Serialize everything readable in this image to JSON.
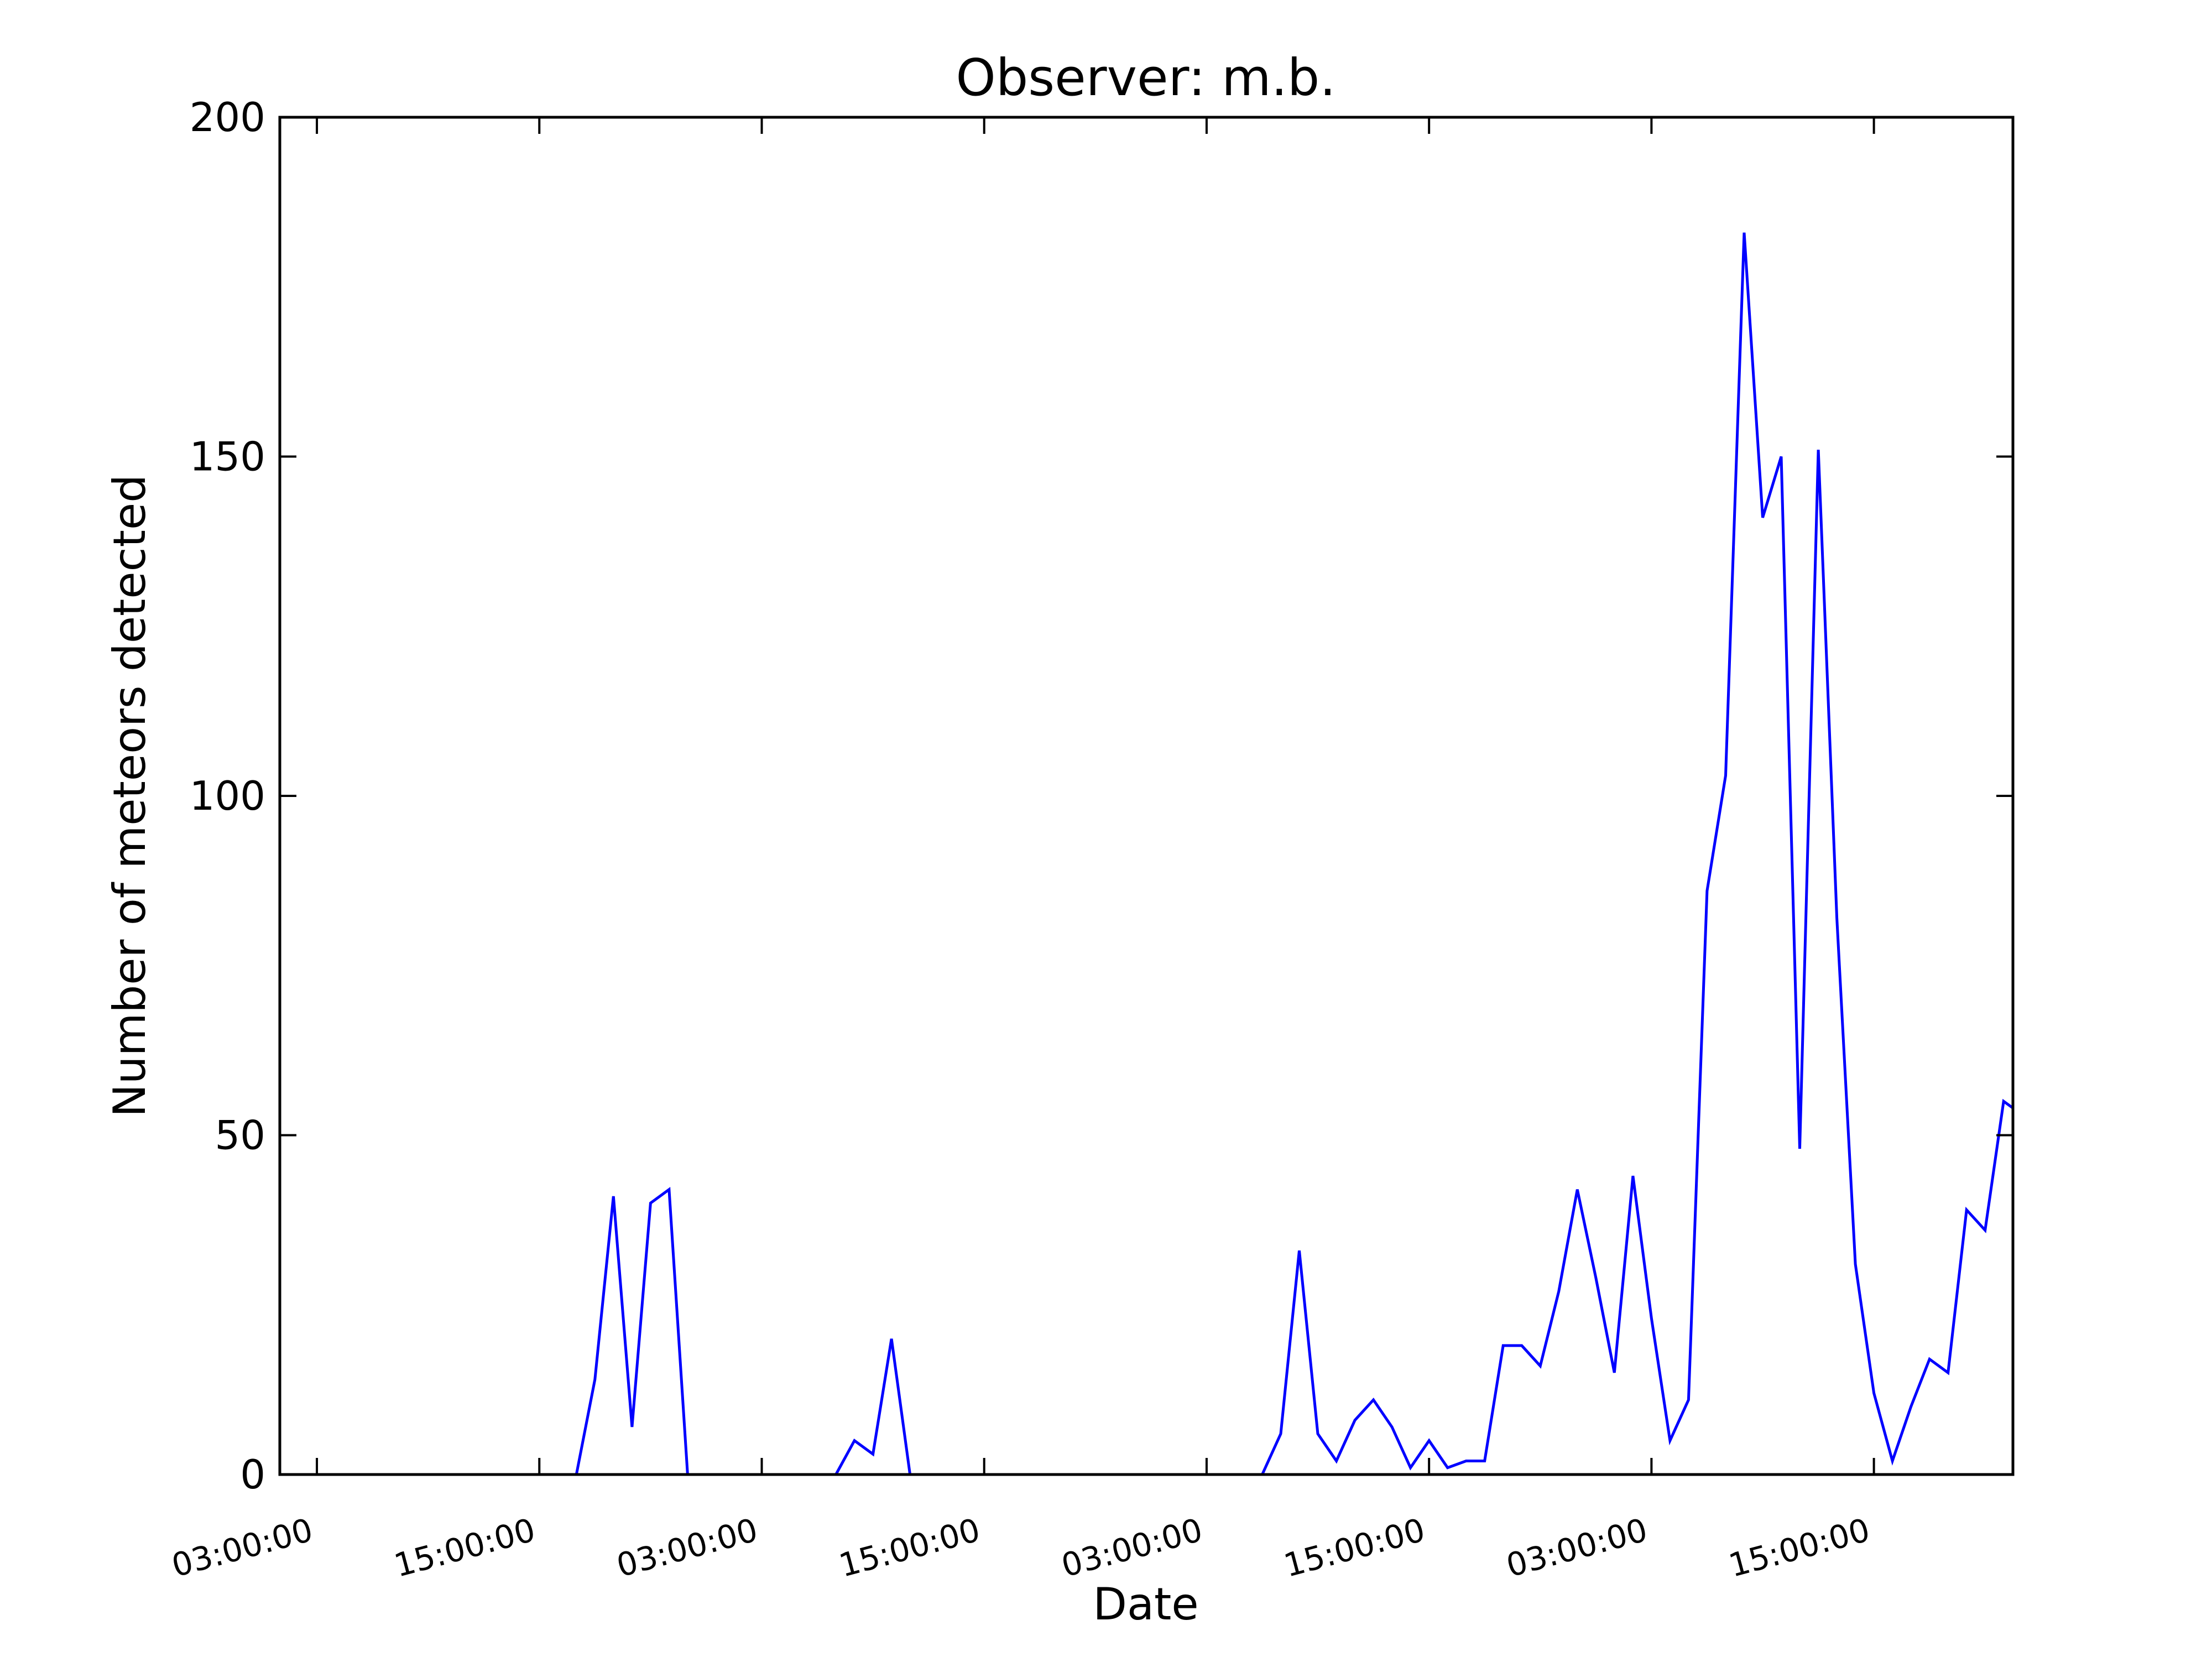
{
  "chart_data": {
    "type": "line",
    "title": "Observer: m.b.",
    "xlabel": "Date",
    "ylabel": "Number of meteors detected",
    "ylim": [
      0,
      200
    ],
    "xlim": [
      -2,
      91.5
    ],
    "yticks": [
      0,
      50,
      100,
      150,
      200
    ],
    "xticks": [
      {
        "x": 0,
        "label": "03:00:00"
      },
      {
        "x": 12,
        "label": "15:00:00"
      },
      {
        "x": 24,
        "label": "03:00:00"
      },
      {
        "x": 36,
        "label": "15:00:00"
      },
      {
        "x": 48,
        "label": "03:00:00"
      },
      {
        "x": 60,
        "label": "15:00:00"
      },
      {
        "x": 72,
        "label": "03:00:00"
      },
      {
        "x": 84,
        "label": "15:00:00"
      }
    ],
    "grid": false,
    "legend": "none",
    "line_color": "#0000ff",
    "series": [
      {
        "x": [
          -2,
          14,
          15,
          16,
          17,
          18,
          19,
          20,
          28,
          29,
          30,
          31,
          32,
          51,
          52,
          53,
          54,
          55,
          56,
          57,
          58,
          59,
          60,
          61,
          62,
          63,
          64,
          65,
          66,
          67,
          68,
          69,
          70,
          71,
          72,
          73,
          74,
          75,
          76,
          77,
          78,
          79,
          80,
          81,
          82,
          83,
          84,
          85,
          86,
          87,
          88,
          89,
          90,
          91,
          91.5
        ],
        "y": [
          0,
          0,
          14,
          41,
          7,
          40,
          42,
          0,
          0,
          5,
          3,
          20,
          0,
          0,
          6,
          33,
          6,
          2,
          8,
          11,
          7,
          1,
          5,
          1,
          2,
          2,
          19,
          19,
          16,
          27,
          42,
          29,
          15,
          44,
          23,
          5,
          11,
          86,
          103,
          183,
          141,
          150,
          48,
          151,
          82,
          31,
          12,
          2,
          10,
          17,
          15,
          39,
          36,
          55,
          54
        ]
      }
    ]
  }
}
